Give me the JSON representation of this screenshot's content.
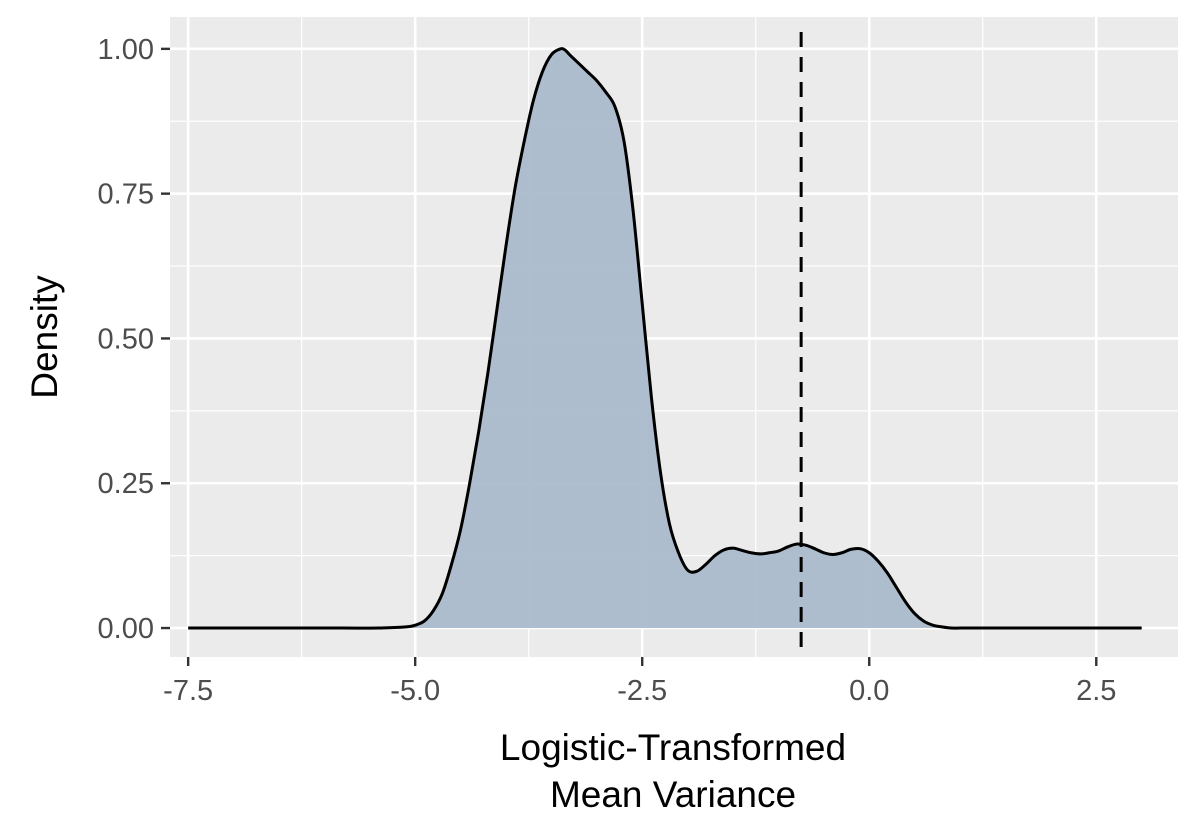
{
  "chart_data": {
    "type": "area",
    "title": "",
    "xlabel_lines": [
      "Logistic-Transformed",
      "Mean Variance"
    ],
    "ylabel": "Density",
    "xlim": [
      -7.7,
      3.4
    ],
    "ylim": [
      -0.05,
      1.055
    ],
    "x_ticks": [
      -7.5,
      -5.0,
      -2.5,
      0.0,
      2.5
    ],
    "x_tick_labels": [
      "-7.5",
      "-5.0",
      "-2.5",
      "0.0",
      "2.5"
    ],
    "y_ticks": [
      0.0,
      0.25,
      0.5,
      0.75,
      1.0
    ],
    "y_tick_labels": [
      "0.00",
      "0.25",
      "0.50",
      "0.75",
      "1.00"
    ],
    "grid": true,
    "fill_color": "#a7b8cb",
    "line_color": "#000000",
    "panel_color": "#ebebeb",
    "vline": {
      "x": -0.75,
      "style": "dashed"
    },
    "series": [
      {
        "x": [
          -7.5,
          -6.5,
          -5.8,
          -5.4,
          -5.1,
          -5.0,
          -4.9,
          -4.8,
          -4.7,
          -4.6,
          -4.5,
          -4.4,
          -4.3,
          -4.2,
          -4.1,
          -4.0,
          -3.9,
          -3.8,
          -3.7,
          -3.6,
          -3.5,
          -3.4,
          -3.35,
          -3.3,
          -3.2,
          -3.1,
          -3.0,
          -2.9,
          -2.8,
          -2.7,
          -2.6,
          -2.5,
          -2.4,
          -2.3,
          -2.2,
          -2.1,
          -2.0,
          -1.9,
          -1.8,
          -1.7,
          -1.6,
          -1.5,
          -1.4,
          -1.3,
          -1.2,
          -1.1,
          -1.0,
          -0.9,
          -0.8,
          -0.7,
          -0.6,
          -0.5,
          -0.4,
          -0.3,
          -0.2,
          -0.1,
          0.0,
          0.1,
          0.2,
          0.3,
          0.4,
          0.5,
          0.6,
          0.7,
          0.8,
          0.9,
          1.0,
          1.1,
          1.3,
          1.6,
          2.0,
          2.5,
          3.0
        ],
        "y": [
          0.0,
          0.0,
          0.0,
          0.0,
          0.002,
          0.005,
          0.012,
          0.03,
          0.06,
          0.11,
          0.17,
          0.25,
          0.34,
          0.44,
          0.55,
          0.66,
          0.76,
          0.84,
          0.91,
          0.96,
          0.99,
          1.0,
          0.998,
          0.99,
          0.975,
          0.96,
          0.945,
          0.925,
          0.9,
          0.84,
          0.72,
          0.56,
          0.4,
          0.27,
          0.18,
          0.13,
          0.1,
          0.098,
          0.11,
          0.125,
          0.135,
          0.138,
          0.134,
          0.13,
          0.128,
          0.13,
          0.133,
          0.14,
          0.145,
          0.143,
          0.137,
          0.13,
          0.127,
          0.13,
          0.136,
          0.137,
          0.13,
          0.115,
          0.095,
          0.07,
          0.045,
          0.025,
          0.012,
          0.005,
          0.002,
          0.0,
          0.0,
          0.0,
          0.0,
          0.0,
          0.0,
          0.0,
          0.0
        ]
      }
    ]
  }
}
